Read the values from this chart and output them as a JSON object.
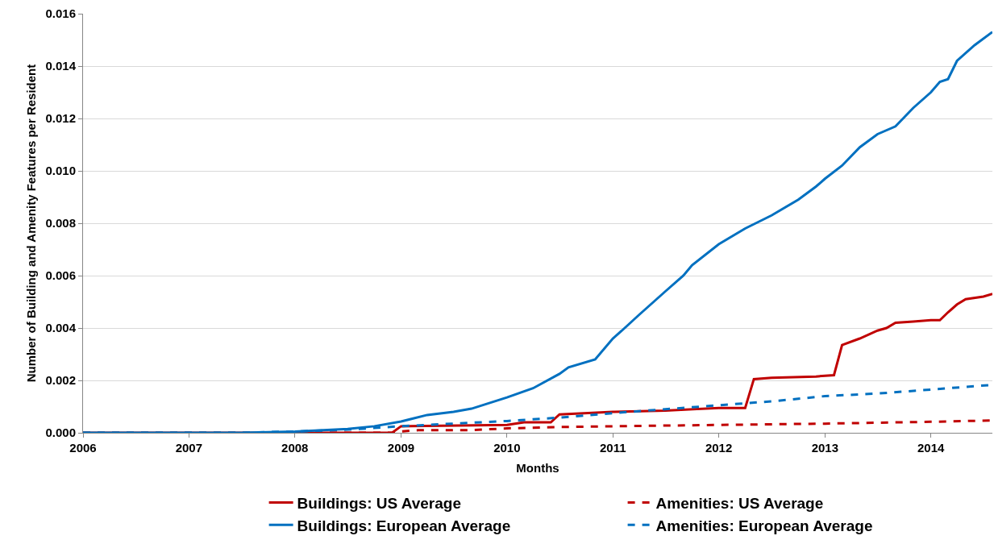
{
  "chart_data": {
    "type": "line",
    "xlabel": "Months",
    "ylabel": "Number of Building and Amenity Features per Resident",
    "xlim": [
      "2006-01",
      "2014-08"
    ],
    "xticks": [
      {
        "value": "2006-01",
        "label": "2006"
      },
      {
        "value": "2007-01",
        "label": "2007"
      },
      {
        "value": "2008-01",
        "label": "2008"
      },
      {
        "value": "2009-01",
        "label": "2009"
      },
      {
        "value": "2010-01",
        "label": "2010"
      },
      {
        "value": "2011-01",
        "label": "2011"
      },
      {
        "value": "2012-01",
        "label": "2012"
      },
      {
        "value": "2013-01",
        "label": "2013"
      },
      {
        "value": "2014-01",
        "label": "2014"
      }
    ],
    "ylim": [
      0,
      0.016
    ],
    "yticks": [
      {
        "value": 0,
        "label": "0.000"
      },
      {
        "value": 0.002,
        "label": "0.002"
      },
      {
        "value": 0.004,
        "label": "0.004"
      },
      {
        "value": 0.006,
        "label": "0.006"
      },
      {
        "value": 0.008,
        "label": "0.008"
      },
      {
        "value": 0.01,
        "label": "0.010"
      },
      {
        "value": 0.012,
        "label": "0.012"
      },
      {
        "value": 0.014,
        "label": "0.014"
      },
      {
        "value": 0.016,
        "label": "0.016"
      }
    ],
    "grid": "y",
    "legend": "bottom",
    "marker": "none",
    "series": [
      {
        "name": "Buildings: US Average",
        "color": "#c00000",
        "line_style": "solid",
        "x": [
          "2006-01",
          "2008-12",
          "2009-01",
          "2010-01",
          "2010-03",
          "2010-06",
          "2010-07",
          "2011-01",
          "2011-07",
          "2012-01",
          "2012-04",
          "2012-05",
          "2012-07",
          "2012-12",
          "2013-02",
          "2013-03",
          "2013-05",
          "2013-07",
          "2013-08",
          "2013-09",
          "2013-11",
          "2014-01",
          "2014-02",
          "2014-03",
          "2014-04",
          "2014-05",
          "2014-07",
          "2014-08"
        ],
        "values": [
          0,
          0,
          0.00025,
          0.0003,
          0.0004,
          0.0004,
          0.0007,
          0.0008,
          0.00085,
          0.00095,
          0.00095,
          0.00205,
          0.0021,
          0.00215,
          0.0022,
          0.00335,
          0.0036,
          0.0039,
          0.004,
          0.0042,
          0.00425,
          0.0043,
          0.0043,
          0.0046,
          0.0049,
          0.0051,
          0.0052,
          0.0053
        ]
      },
      {
        "name": "Amenities: US Average",
        "color": "#c00000",
        "line_style": "dashed",
        "x": [
          "2006-01",
          "2008-12",
          "2009-01",
          "2009-03",
          "2009-09",
          "2010-01",
          "2010-07",
          "2011-01",
          "2012-01",
          "2013-01",
          "2014-01",
          "2014-08"
        ],
        "values": [
          0,
          0,
          5e-05,
          0.0001,
          0.0001,
          0.00017,
          0.00022,
          0.00025,
          0.0003,
          0.00035,
          0.00042,
          0.00047
        ]
      },
      {
        "name": "Buildings: European Average",
        "color": "#0070c0",
        "line_style": "solid",
        "x": [
          "2006-01",
          "2007-07",
          "2008-01",
          "2008-07",
          "2008-10",
          "2009-01",
          "2009-04",
          "2009-07",
          "2009-09",
          "2010-01",
          "2010-04",
          "2010-07",
          "2010-08",
          "2010-11",
          "2011-01",
          "2011-02",
          "2011-04",
          "2011-07",
          "2011-09",
          "2011-10",
          "2012-01",
          "2012-04",
          "2012-07",
          "2012-10",
          "2012-12",
          "2013-01",
          "2013-03",
          "2013-05",
          "2013-07",
          "2013-09",
          "2013-11",
          "2014-01",
          "2014-02",
          "2014-03",
          "2014-04",
          "2014-06",
          "2014-08"
        ],
        "values": [
          0,
          0,
          5e-05,
          0.00015,
          0.00025,
          0.00043,
          0.00068,
          0.0008,
          0.00092,
          0.00135,
          0.0017,
          0.00225,
          0.0025,
          0.0028,
          0.0036,
          0.0039,
          0.0045,
          0.0054,
          0.006,
          0.0064,
          0.0072,
          0.0078,
          0.0083,
          0.0089,
          0.0094,
          0.0097,
          0.0102,
          0.0109,
          0.0114,
          0.0117,
          0.0124,
          0.013,
          0.0134,
          0.0135,
          0.0142,
          0.0148,
          0.0153
        ]
      },
      {
        "name": "Amenities: European Average",
        "color": "#0070c0",
        "line_style": "dashed",
        "x": [
          "2006-01",
          "2007-07",
          "2008-01",
          "2008-07",
          "2009-01",
          "2009-07",
          "2010-01",
          "2010-07",
          "2011-01",
          "2011-07",
          "2012-01",
          "2012-07",
          "2013-01",
          "2013-07",
          "2014-01",
          "2014-08"
        ],
        "values": [
          0,
          0,
          5e-05,
          0.00012,
          0.00025,
          0.00035,
          0.00045,
          0.00058,
          0.00075,
          0.0009,
          0.00105,
          0.0012,
          0.0014,
          0.0015,
          0.00165,
          0.00183
        ]
      }
    ]
  }
}
